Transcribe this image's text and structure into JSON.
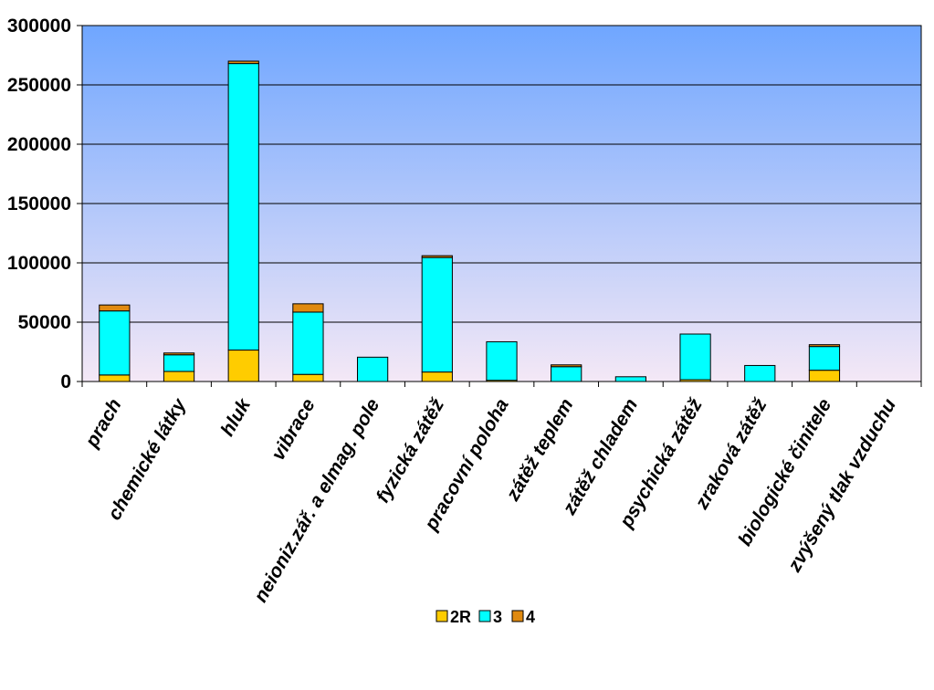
{
  "chart_data": {
    "type": "bar",
    "stacked": true,
    "title": "",
    "xlabel": "",
    "ylabel": "",
    "ylim": [
      0,
      300000
    ],
    "yticks": [
      "0",
      "50000",
      "100000",
      "150000",
      "200000",
      "250000",
      "300000"
    ],
    "categories": [
      "prach",
      "chemické látky",
      "hluk",
      "vibrace",
      "neioniz.zář. a elmag. pole",
      "fyzická zátěž",
      "pracovní poloha",
      "zátěž teplem",
      "zátěž chladem",
      "psychická zátěž",
      "zraková zátěž",
      "biologické činitele",
      "zvýšený tlak vzduchu"
    ],
    "series": [
      {
        "name": "2R",
        "color": "#FFCC00",
        "values": [
          5500,
          8500,
          26500,
          6000,
          0,
          8000,
          1000,
          0,
          0,
          1500,
          0,
          9500,
          0
        ]
      },
      {
        "name": "3",
        "color": "#00FFFF",
        "values": [
          54000,
          14000,
          241500,
          52500,
          20500,
          96500,
          32500,
          12500,
          4000,
          38500,
          13500,
          20000,
          0
        ]
      },
      {
        "name": "4",
        "color": "#E08A10",
        "values": [
          5000,
          1000,
          2000,
          7000,
          0,
          500,
          0,
          500,
          0,
          0,
          0,
          500,
          0
        ]
      }
    ],
    "grid": true,
    "legend": "bottom",
    "background": [
      "#6FA6FF",
      "#F4E8F6"
    ]
  }
}
